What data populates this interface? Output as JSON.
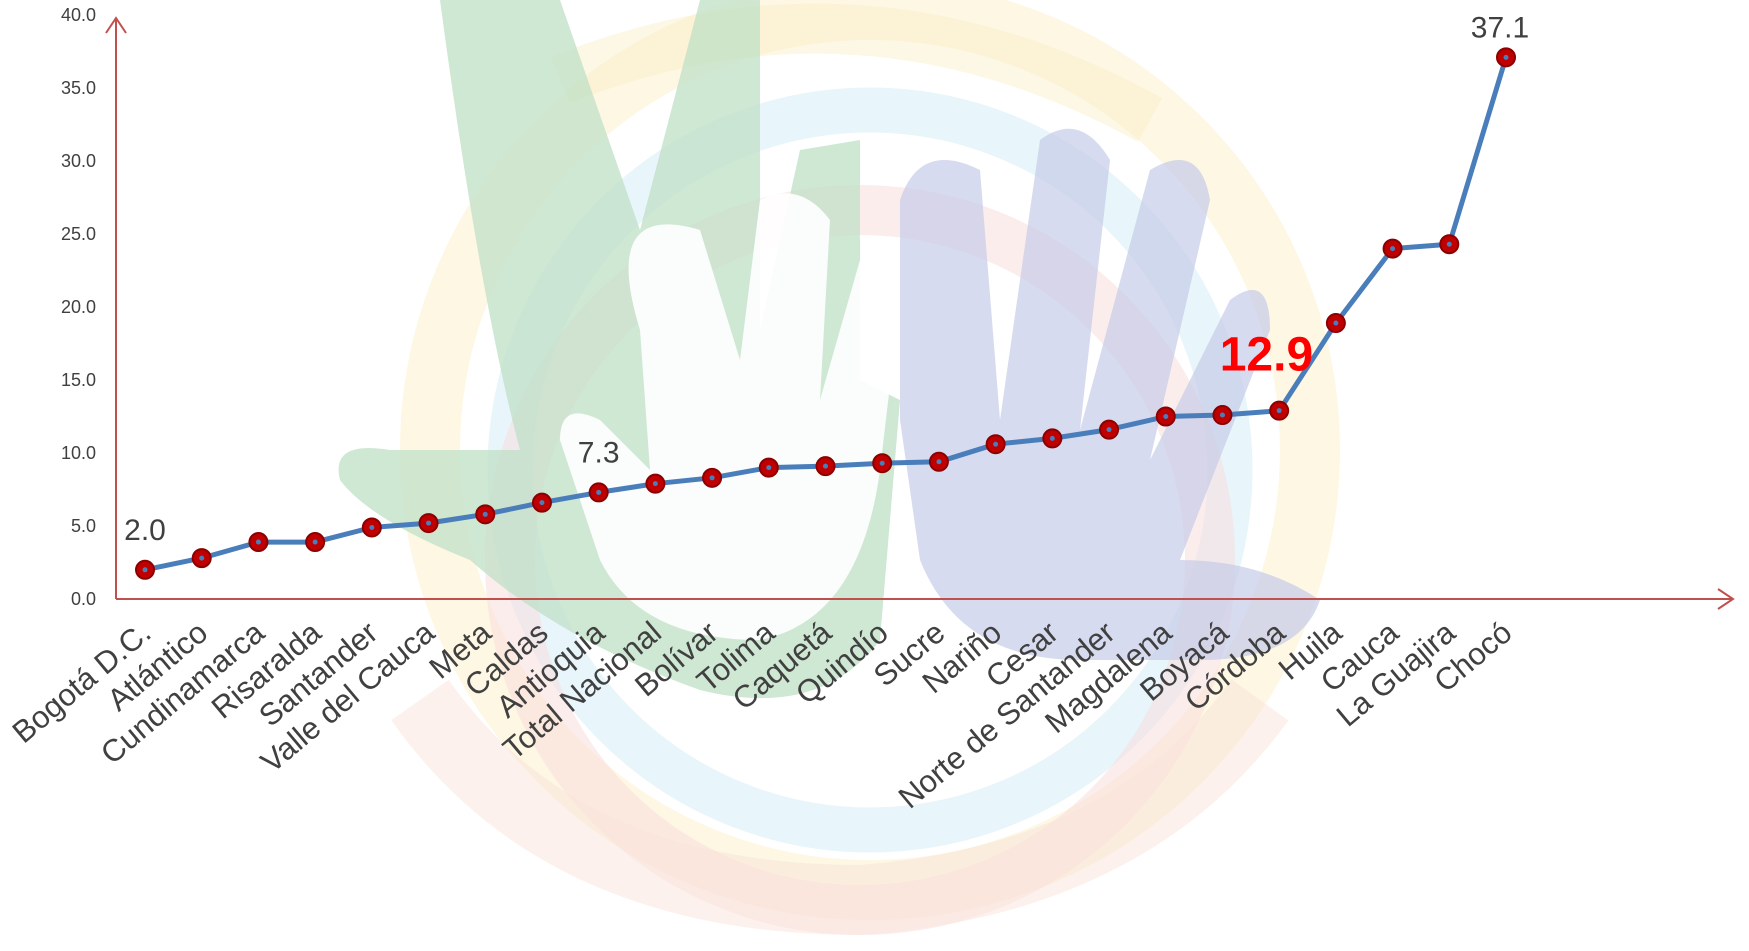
{
  "chart_data": {
    "type": "line",
    "categories": [
      "Bogotá D.C.",
      "Atlántico",
      "Cundinamarca",
      "Risaralda",
      "Santander",
      "Valle del Cauca",
      "Meta",
      "Caldas",
      "Antioquia",
      "Total Nacional",
      "Bolívar",
      "Tolima",
      "Caquetá",
      "Quindío",
      "Sucre",
      "Nariño",
      "Cesar",
      "Norte de Santander",
      "Magdalena",
      "Boyacá",
      "Córdoba",
      "Huila",
      "Cauca",
      "La Guajira",
      "Chocó"
    ],
    "series": [
      {
        "values": [
          2.0,
          2.8,
          3.9,
          3.9,
          4.9,
          5.2,
          5.8,
          6.6,
          7.3,
          7.9,
          8.3,
          9.0,
          9.1,
          9.3,
          9.4,
          10.6,
          11.0,
          11.6,
          12.5,
          12.6,
          12.9,
          18.9,
          24.0,
          24.3,
          37.1
        ],
        "color": "#4A7EBB",
        "marker_color": "#C00000"
      }
    ],
    "ylim": [
      0,
      40
    ],
    "yticks": [
      "0.0",
      "5.0",
      "10.0",
      "15.0",
      "20.0",
      "25.0",
      "30.0",
      "35.0",
      "40.0"
    ],
    "axis_color": "#C0504D",
    "grid": false,
    "legend": "none",
    "data_labels": [
      {
        "category": "Bogotá D.C.",
        "text": "2.0",
        "color": "#404040"
      },
      {
        "category": "Antioquia",
        "text": "7.3",
        "color": "#404040"
      },
      {
        "category": "Córdoba",
        "text": "12.9",
        "color": "#FF0000",
        "highlight": true
      },
      {
        "category": "Chocó",
        "text": "37.1",
        "color": "#404040"
      }
    ],
    "background": "faded hand-prints watermark"
  }
}
